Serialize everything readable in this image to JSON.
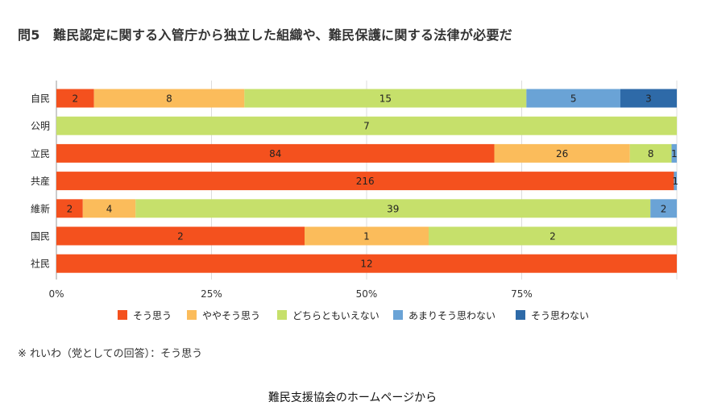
{
  "title": "問5　難民認定に関する入管庁から独立した組織や、難民保護に関する法律が必要だ",
  "note": "※ れいわ（党としての回答）：そう思う",
  "source": "難民支援協会のホームページから",
  "chart_data": {
    "type": "bar",
    "orientation": "horizontal",
    "stacked": "percent",
    "categories": [
      "自民",
      "公明",
      "立民",
      "共産",
      "維新",
      "国民",
      "社民"
    ],
    "series": [
      {
        "name": "そう思う",
        "color": "#f4511e",
        "values": [
          2,
          0,
          84,
          216,
          2,
          2,
          12
        ]
      },
      {
        "name": "ややそう思う",
        "color": "#fbbc5b",
        "values": [
          8,
          0,
          26,
          0,
          4,
          1,
          0
        ]
      },
      {
        "name": "どちらともいえない",
        "color": "#c6e06b",
        "values": [
          15,
          7,
          8,
          0,
          39,
          2,
          0
        ]
      },
      {
        "name": "あまりそう思わない",
        "color": "#6aa3d6",
        "values": [
          5,
          0,
          1,
          1,
          2,
          0,
          0
        ]
      },
      {
        "name": "そう思わない",
        "color": "#2e6aa8",
        "values": [
          3,
          0,
          0,
          0,
          0,
          0,
          0
        ]
      }
    ],
    "data_labels": [
      [
        "2",
        "",
        "84",
        "216",
        "2",
        "2",
        "12"
      ],
      [
        "8",
        "",
        "26",
        "",
        "4",
        "1",
        ""
      ],
      [
        "15",
        "7",
        "8",
        "",
        "39",
        "2",
        ""
      ],
      [
        "5",
        "",
        "1",
        "1",
        "2",
        "",
        ""
      ],
      [
        "3",
        "",
        "",
        "",
        "",
        "",
        ""
      ]
    ],
    "x_ticks": [
      "0%",
      "25%",
      "50%",
      "75%"
    ],
    "xlim": [
      0,
      100
    ],
    "grid": true,
    "legend_position": "bottom"
  }
}
